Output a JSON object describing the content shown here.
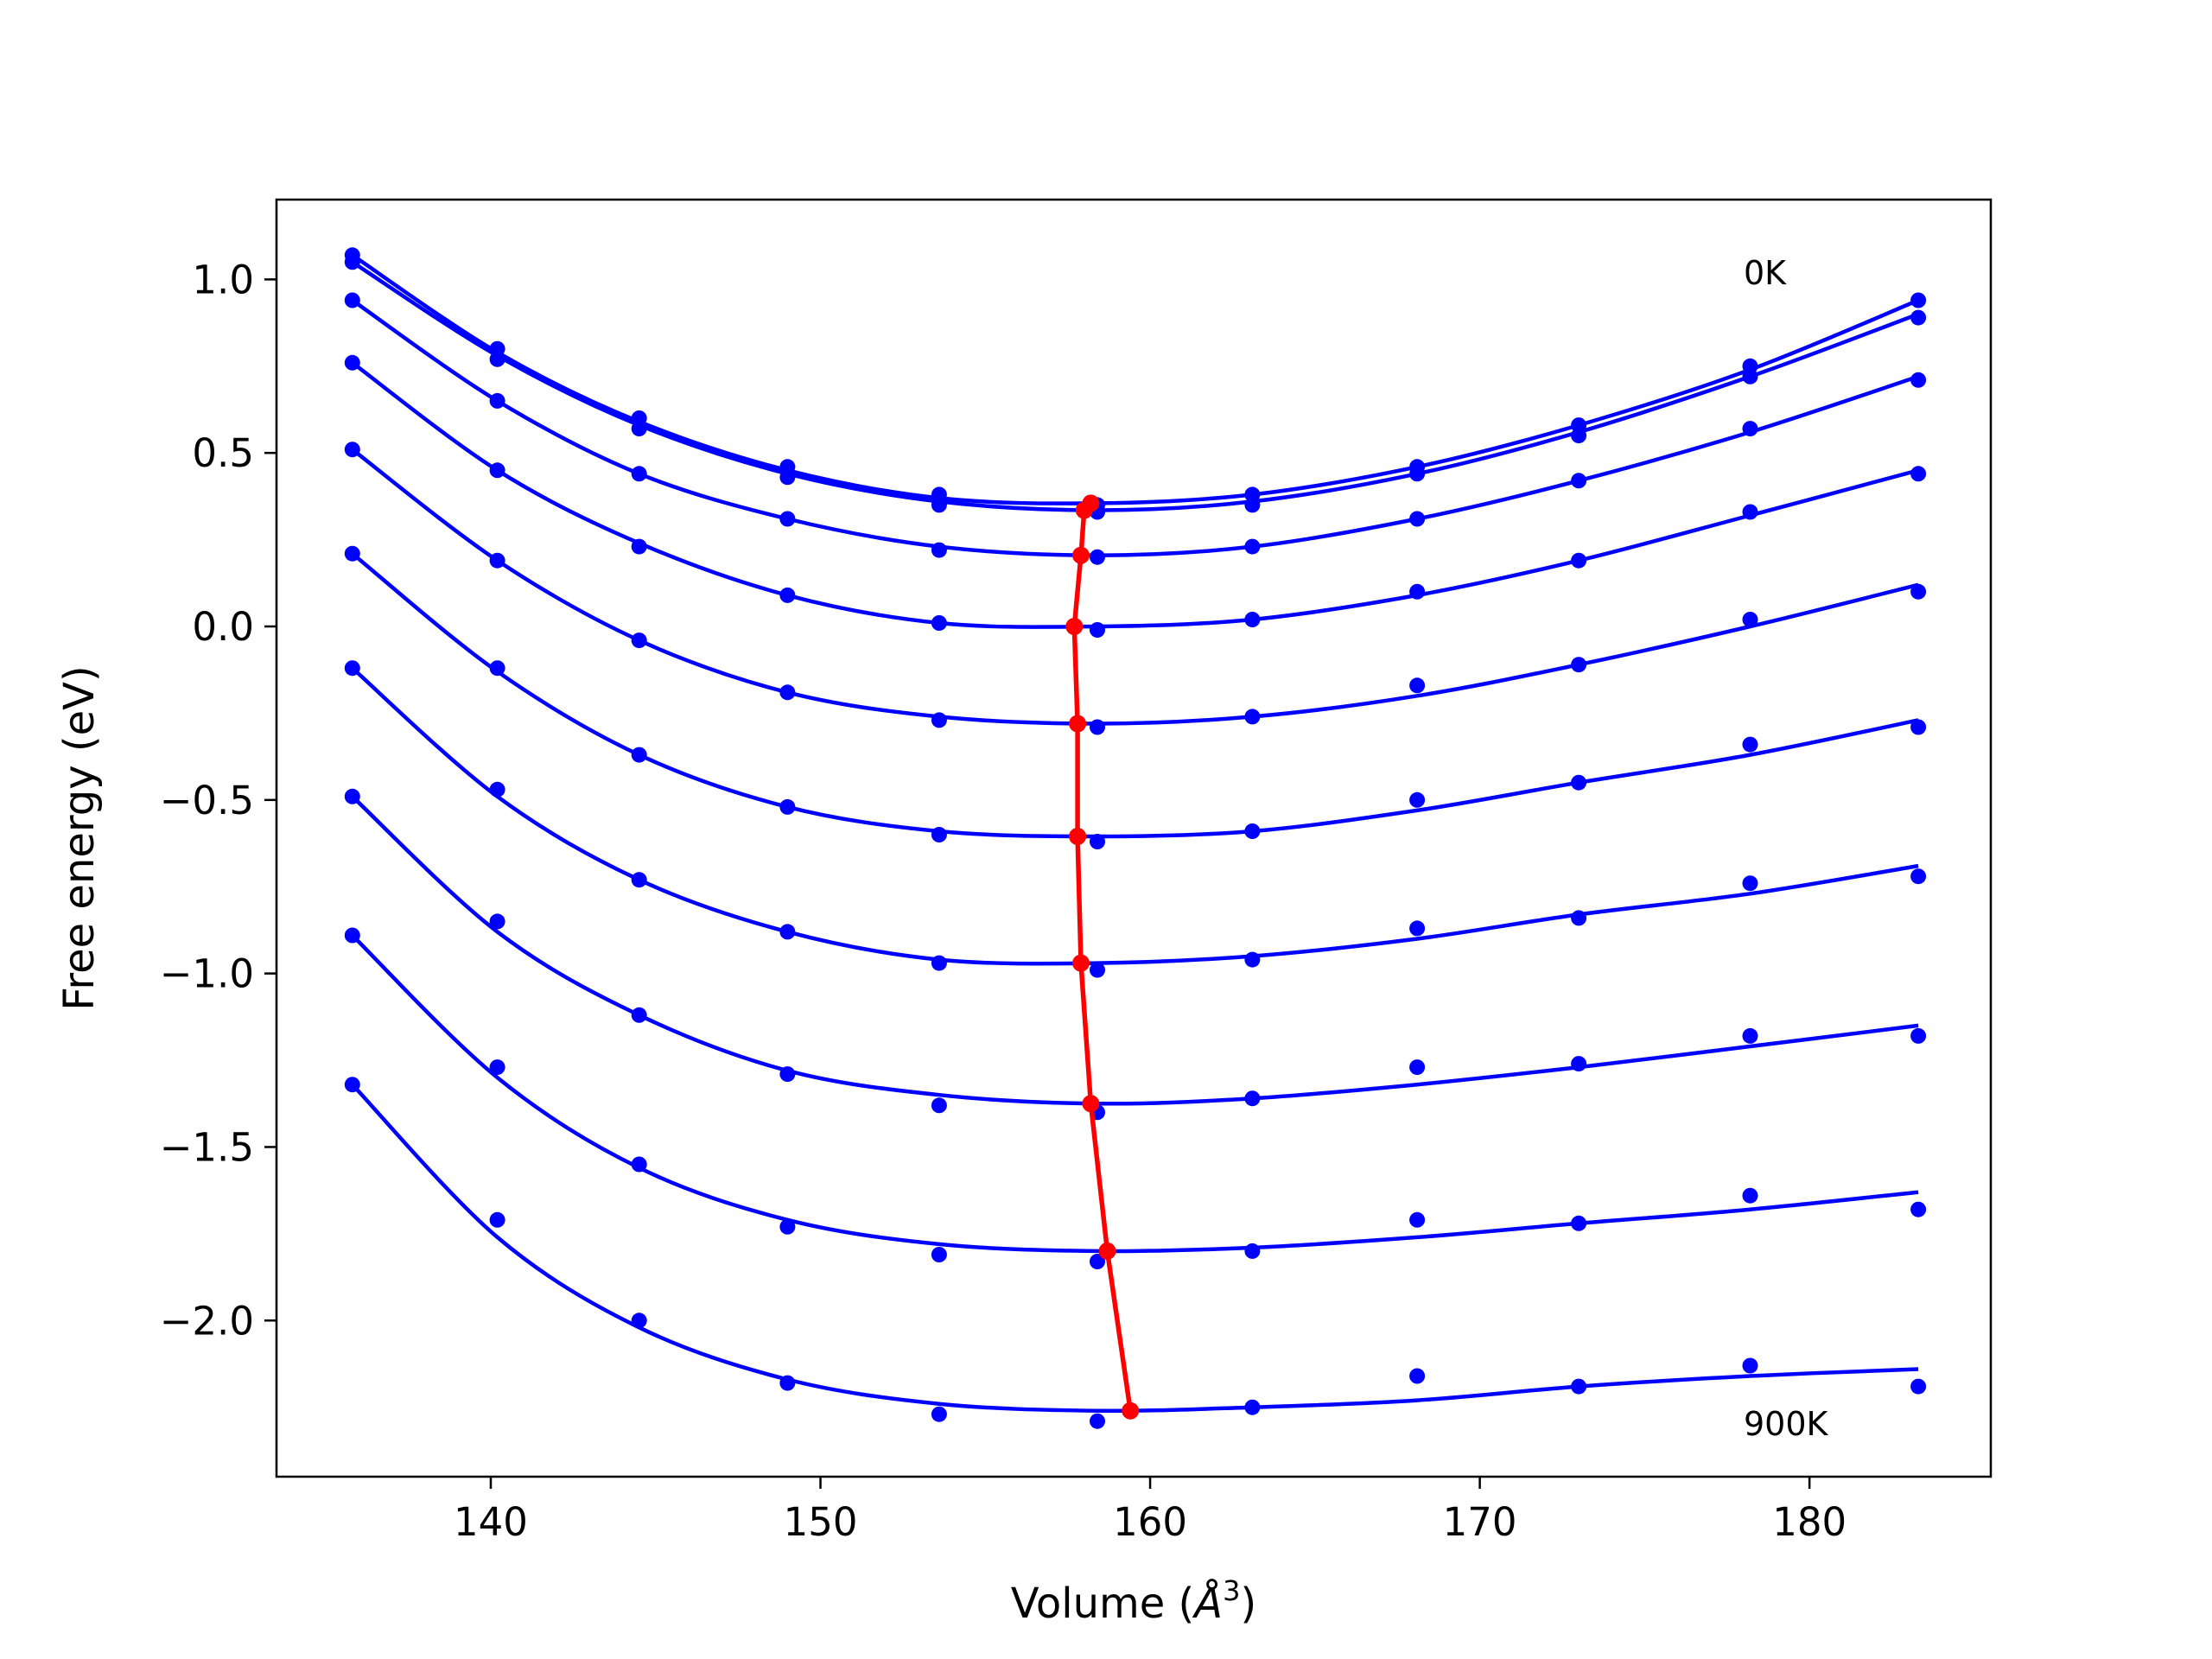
{
  "chart_data": {
    "type": "line",
    "xlabel": "Volume (",
    "xlabel_unit": "Å",
    "xlabel_exp": "3",
    "xlabel_close": ")",
    "ylabel": "Free energy (eV)",
    "xlim": [
      133.5,
      185.5
    ],
    "ylim": [
      -2.45,
      1.23
    ],
    "xticks": [
      140,
      150,
      160,
      170,
      180
    ],
    "yticks": [
      1.0,
      0.5,
      0.0,
      -0.5,
      -1.0,
      -1.5,
      -2.0
    ],
    "xtick_labels": [
      "140",
      "150",
      "160",
      "170",
      "180"
    ],
    "ytick_labels": [
      "1.0",
      "0.5",
      "0.0",
      "−0.5",
      "−1.0",
      "−1.5",
      "−2.0"
    ],
    "grid": false,
    "annotations": [
      {
        "text": "0K",
        "x": 178.2,
        "y": 1.0
      },
      {
        "text": "900K",
        "x": 178.2,
        "y": -2.36
      }
    ],
    "x": [
      135.8,
      140.2,
      144.5,
      149.0,
      153.6,
      158.4,
      163.1,
      168.1,
      173.0,
      178.2,
      183.3
    ],
    "series": [
      {
        "points": [
          1.07,
          0.8,
          0.6,
          0.46,
          0.38,
          0.35,
          0.38,
          0.46,
          0.58,
          0.75,
          0.94
        ],
        "curve": [
          1.07,
          0.79,
          0.59,
          0.45,
          0.37,
          0.355,
          0.38,
          0.46,
          0.58,
          0.74,
          0.94
        ]
      },
      {
        "points": [
          1.05,
          0.77,
          0.57,
          0.43,
          0.35,
          0.33,
          0.35,
          0.44,
          0.55,
          0.72,
          0.89
        ],
        "curve": [
          1.05,
          0.78,
          0.58,
          0.44,
          0.36,
          0.335,
          0.36,
          0.44,
          0.56,
          0.72,
          0.9
        ]
      },
      {
        "points": [
          0.94,
          0.65,
          0.44,
          0.31,
          0.22,
          0.2,
          0.23,
          0.31,
          0.42,
          0.57,
          0.71
        ],
        "curve": [
          0.94,
          0.65,
          0.44,
          0.31,
          0.23,
          0.205,
          0.23,
          0.31,
          0.42,
          0.56,
          0.72
        ]
      },
      {
        "points": [
          0.76,
          0.45,
          0.23,
          0.09,
          0.01,
          -0.01,
          0.02,
          0.1,
          0.19,
          0.33,
          0.44
        ],
        "curve": [
          0.76,
          0.45,
          0.24,
          0.09,
          0.01,
          0.0,
          0.02,
          0.09,
          0.19,
          0.32,
          0.45
        ]
      },
      {
        "points": [
          0.51,
          0.19,
          -0.04,
          -0.19,
          -0.27,
          -0.29,
          -0.26,
          -0.17,
          -0.11,
          0.02,
          0.1
        ],
        "curve": [
          0.51,
          0.19,
          -0.04,
          -0.19,
          -0.26,
          -0.28,
          -0.26,
          -0.2,
          -0.11,
          0.0,
          0.12
        ]
      },
      {
        "points": [
          0.21,
          -0.12,
          -0.37,
          -0.52,
          -0.6,
          -0.62,
          -0.59,
          -0.5,
          -0.45,
          -0.34,
          -0.29
        ],
        "curve": [
          0.21,
          -0.13,
          -0.37,
          -0.52,
          -0.59,
          -0.605,
          -0.59,
          -0.53,
          -0.45,
          -0.37,
          -0.27
        ]
      },
      {
        "points": [
          -0.12,
          -0.47,
          -0.73,
          -0.88,
          -0.97,
          -0.99,
          -0.96,
          -0.87,
          -0.84,
          -0.74,
          -0.72
        ],
        "curve": [
          -0.12,
          -0.49,
          -0.73,
          -0.88,
          -0.96,
          -0.97,
          -0.95,
          -0.9,
          -0.83,
          -0.77,
          -0.69
        ]
      },
      {
        "points": [
          -0.49,
          -0.85,
          -1.12,
          -1.29,
          -1.38,
          -1.4,
          -1.36,
          -1.27,
          -1.26,
          -1.18,
          -1.18
        ],
        "curve": [
          -0.49,
          -0.88,
          -1.12,
          -1.28,
          -1.35,
          -1.375,
          -1.36,
          -1.32,
          -1.27,
          -1.21,
          -1.15
        ]
      },
      {
        "points": [
          -0.89,
          -1.27,
          -1.55,
          -1.73,
          -1.81,
          -1.83,
          -1.8,
          -1.71,
          -1.72,
          -1.64,
          -1.68
        ],
        "curve": [
          -0.89,
          -1.3,
          -1.56,
          -1.71,
          -1.78,
          -1.8,
          -1.79,
          -1.76,
          -1.72,
          -1.68,
          -1.63
        ]
      },
      {
        "points": [
          -1.32,
          -1.71,
          -2.0,
          -2.18,
          -2.27,
          -2.29,
          -2.25,
          -2.16,
          -2.19,
          -2.13,
          -2.19
        ],
        "curve": [
          -1.32,
          -1.76,
          -2.02,
          -2.17,
          -2.24,
          -2.26,
          -2.25,
          -2.23,
          -2.19,
          -2.16,
          -2.14
        ]
      }
    ],
    "min_path": {
      "x": [
        158.2,
        158.0,
        157.9,
        157.7,
        157.8,
        157.8,
        157.9,
        158.2,
        158.7,
        159.4
      ],
      "y": [
        0.355,
        0.335,
        0.205,
        0.0,
        -0.28,
        -0.605,
        -0.97,
        -1.375,
        -1.8,
        -2.26
      ]
    },
    "colors": {
      "series": "#0000ff",
      "min_path": "#ff0000",
      "axes": "#000000"
    }
  }
}
